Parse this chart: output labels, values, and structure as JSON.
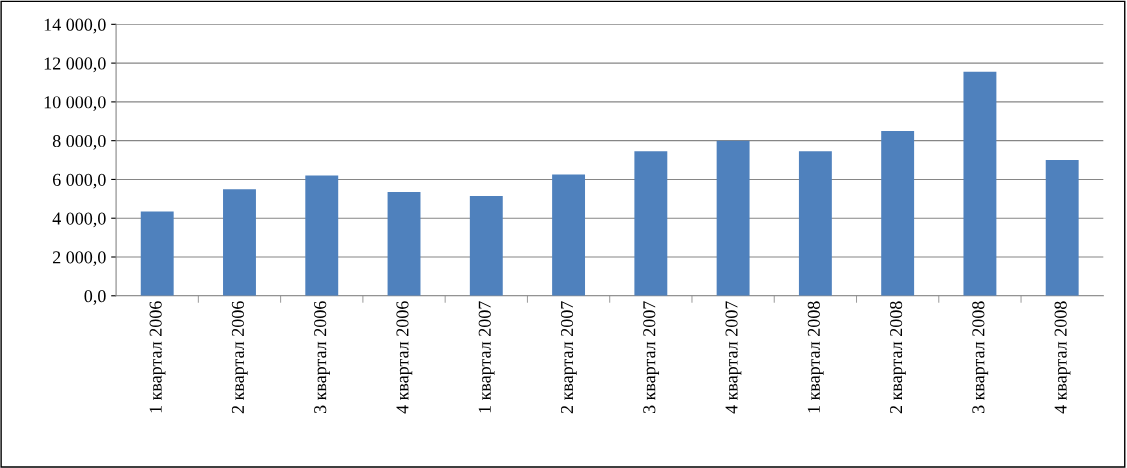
{
  "chart_data": {
    "type": "bar",
    "categories": [
      "1 квартал 2006",
      "2 квартал 2006",
      "3 квартал 2006",
      "4 квартал 2006",
      "1 квартал 2007",
      "2 квартал 2007",
      "3 квартал 2007",
      "4 квартал 2007",
      "1 квартал 2008",
      "2 квартал 2008",
      "3 квартал 2008",
      "4 квартал 2008"
    ],
    "values": [
      4350,
      5500,
      6200,
      5350,
      5150,
      6250,
      7450,
      8000,
      7450,
      8500,
      11550,
      7000
    ],
    "color": "#4f81bd",
    "ylim": [
      0,
      14000
    ],
    "yticks": [
      {
        "value": 0,
        "label": "0,0"
      },
      {
        "value": 2000,
        "label": "2 000,0"
      },
      {
        "value": 4000,
        "label": "4 000,0"
      },
      {
        "value": 6000,
        "label": "6 000,0"
      },
      {
        "value": 8000,
        "label": "8 000,0"
      },
      {
        "value": 10000,
        "label": "10 000,0"
      },
      {
        "value": 12000,
        "label": "12 000,0"
      },
      {
        "value": 14000,
        "label": "14 000,0"
      }
    ],
    "grid": "y",
    "legend": false
  }
}
